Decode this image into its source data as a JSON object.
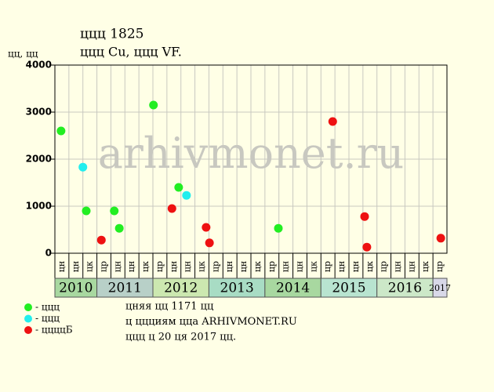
{
  "chart_data": {
    "type": "scatter",
    "title": "ццц 1825",
    "subtitle": "ццц Cu, ццц VF.",
    "y_label": "цц, цц",
    "watermark": "arhivmonet.ru",
    "notes": [
      "цняя цц 1171 цц",
      "ц ццциям цца ARHIVMONET.RU",
      "ццц ц 20 ця 2017 цц."
    ],
    "xlim": [
      2010.25,
      2017.25
    ],
    "ylim": [
      0,
      4000
    ],
    "yticks": [
      0,
      1000,
      2000,
      3000,
      4000
    ],
    "grid": true,
    "xticks": [
      {
        "value": 2010.25,
        "label": "цн"
      },
      {
        "value": 2010.5,
        "label": "цн"
      },
      {
        "value": 2010.75,
        "label": "цк"
      },
      {
        "value": 2011,
        "label": "цр"
      },
      {
        "value": 2011.25,
        "label": "цн"
      },
      {
        "value": 2011.5,
        "label": "цн"
      },
      {
        "value": 2011.75,
        "label": "цк"
      },
      {
        "value": 2012,
        "label": "цр"
      },
      {
        "value": 2012.25,
        "label": "цн"
      },
      {
        "value": 2012.5,
        "label": "цн"
      },
      {
        "value": 2012.75,
        "label": "цк"
      },
      {
        "value": 2013,
        "label": "цр"
      },
      {
        "value": 2013.25,
        "label": "цн"
      },
      {
        "value": 2013.5,
        "label": "цн"
      },
      {
        "value": 2013.75,
        "label": "цк"
      },
      {
        "value": 2014,
        "label": "цр"
      },
      {
        "value": 2014.25,
        "label": "цн"
      },
      {
        "value": 2014.5,
        "label": "цн"
      },
      {
        "value": 2014.75,
        "label": "цк"
      },
      {
        "value": 2015,
        "label": "цр"
      },
      {
        "value": 2015.25,
        "label": "цн"
      },
      {
        "value": 2015.5,
        "label": "цн"
      },
      {
        "value": 2015.75,
        "label": "цк"
      },
      {
        "value": 2016,
        "label": "цр"
      },
      {
        "value": 2016.25,
        "label": "цн"
      },
      {
        "value": 2016.5,
        "label": "цн"
      },
      {
        "value": 2016.75,
        "label": "цк"
      },
      {
        "value": 2017,
        "label": "цр"
      }
    ],
    "years": [
      {
        "value": 2010,
        "label": "2010",
        "color": "#a8d8a0"
      },
      {
        "value": 2011,
        "label": "2011",
        "color": "#b8d0c8"
      },
      {
        "value": 2012,
        "label": "2012",
        "color": "#cce8b0"
      },
      {
        "value": 2013,
        "label": "2013",
        "color": "#a8dcc4"
      },
      {
        "value": 2014,
        "label": "2014",
        "color": "#a8d8a0"
      },
      {
        "value": 2015,
        "label": "2015",
        "color": "#b8e4d0"
      },
      {
        "value": 2016,
        "label": "2016",
        "color": "#cce8c8"
      },
      {
        "value": 2017,
        "label": "2017",
        "color": "#d8d8e8"
      }
    ],
    "series": [
      {
        "name": "- ццц",
        "color": "#22ee22",
        "x": [
          2010.36,
          2010.81,
          2011.31,
          2011.4,
          2012.01,
          2012.46,
          2014.24
        ],
        "values": [
          2600,
          900,
          900,
          530,
          3150,
          1400,
          530
        ]
      },
      {
        "name": "- ццц",
        "color": "#22eeee",
        "x": [
          2010.75,
          2012.6
        ],
        "values": [
          1830,
          1230
        ]
      },
      {
        "name": "- ццццБ",
        "color": "#ee1111",
        "x": [
          2011.08,
          2012.34,
          2012.95,
          2013.01,
          2015.21,
          2015.78,
          2015.82,
          2017.14
        ],
        "values": [
          280,
          950,
          550,
          220,
          2800,
          780,
          130,
          320
        ]
      }
    ]
  }
}
